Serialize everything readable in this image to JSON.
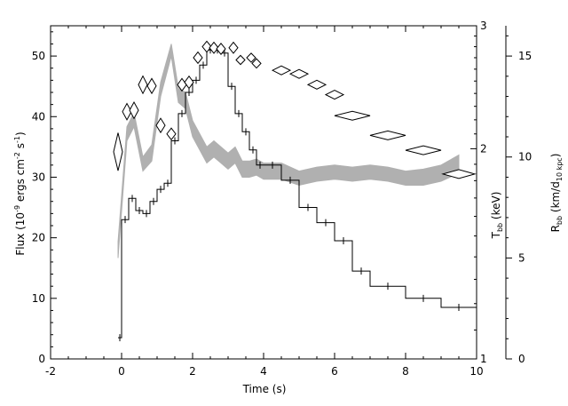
{
  "chart_data": {
    "type": "line",
    "title": "",
    "xlabel": "Time (s)",
    "xlim": [
      -2,
      10
    ],
    "x_ticks": [
      "-2",
      "0",
      "2",
      "4",
      "6",
      "8",
      "10"
    ],
    "axes": {
      "flux": {
        "label_parts": [
          "Flux (10",
          "-9",
          " ergs cm",
          "-2",
          " s",
          "-1",
          ")"
        ],
        "lim": [
          0,
          55
        ],
        "ticks": [
          "0",
          "10",
          "20",
          "30",
          "40",
          "50"
        ]
      },
      "tbb": {
        "label_parts": [
          "T",
          "bb",
          " (keV)"
        ],
        "lim": [
          1,
          3
        ],
        "scale": "log",
        "ticks": [
          "1",
          "2",
          "3"
        ]
      },
      "rbb": {
        "label_parts": [
          "R",
          "bb",
          " (km/d",
          "10 kpc",
          ")"
        ],
        "lim": [
          0,
          16.5
        ],
        "ticks": [
          "0",
          "5",
          "10",
          "15"
        ]
      }
    },
    "series": [
      {
        "kind": "flux-histogram",
        "axis": "flux",
        "color": "#000000",
        "bins": [
          {
            "x0": -0.1,
            "x1": 0.0,
            "y": 3.5
          },
          {
            "x0": 0.0,
            "x1": 0.2,
            "y": 23.0
          },
          {
            "x0": 0.2,
            "x1": 0.4,
            "y": 26.5
          },
          {
            "x0": 0.4,
            "x1": 0.6,
            "y": 24.5
          },
          {
            "x0": 0.6,
            "x1": 0.8,
            "y": 24.0
          },
          {
            "x0": 0.8,
            "x1": 1.0,
            "y": 26.0
          },
          {
            "x0": 1.0,
            "x1": 1.2,
            "y": 28.0
          },
          {
            "x0": 1.2,
            "x1": 1.4,
            "y": 29.0
          },
          {
            "x0": 1.4,
            "x1": 1.6,
            "y": 36.0
          },
          {
            "x0": 1.6,
            "x1": 1.8,
            "y": 40.5
          },
          {
            "x0": 1.8,
            "x1": 2.0,
            "y": 44.0
          },
          {
            "x0": 2.0,
            "x1": 2.2,
            "y": 46.0
          },
          {
            "x0": 2.2,
            "x1": 2.4,
            "y": 48.5
          },
          {
            "x0": 2.4,
            "x1": 2.6,
            "y": 51.0
          },
          {
            "x0": 2.6,
            "x1": 2.8,
            "y": 51.0
          },
          {
            "x0": 2.8,
            "x1": 3.0,
            "y": 50.5
          },
          {
            "x0": 3.0,
            "x1": 3.2,
            "y": 45.0
          },
          {
            "x0": 3.2,
            "x1": 3.4,
            "y": 40.5
          },
          {
            "x0": 3.4,
            "x1": 3.6,
            "y": 37.5
          },
          {
            "x0": 3.6,
            "x1": 3.8,
            "y": 34.5
          },
          {
            "x0": 3.8,
            "x1": 4.0,
            "y": 32.0
          },
          {
            "x0": 4.0,
            "x1": 4.5,
            "y": 32.0
          },
          {
            "x0": 4.5,
            "x1": 5.0,
            "y": 29.5
          },
          {
            "x0": 5.0,
            "x1": 5.5,
            "y": 25.0
          },
          {
            "x0": 5.5,
            "x1": 6.0,
            "y": 22.5
          },
          {
            "x0": 6.0,
            "x1": 6.5,
            "y": 19.5
          },
          {
            "x0": 6.5,
            "x1": 7.0,
            "y": 14.5
          },
          {
            "x0": 7.0,
            "x1": 8.0,
            "y": 12.0
          },
          {
            "x0": 8.0,
            "x1": 9.0,
            "y": 10.0
          },
          {
            "x0": 9.0,
            "x1": 10.0,
            "y": 8.5
          }
        ]
      },
      {
        "kind": "temperature-points",
        "axis": "tbb",
        "color": "#000000",
        "points": [
          {
            "x": -0.1,
            "y": 1.98,
            "dx": 0.1,
            "dy": 0.12
          },
          {
            "x": 0.15,
            "y": 2.26,
            "dx": 0.1,
            "dy": 0.06
          },
          {
            "x": 0.35,
            "y": 2.27,
            "dx": 0.1,
            "dy": 0.06
          },
          {
            "x": 0.6,
            "y": 2.47,
            "dx": 0.1,
            "dy": 0.07
          },
          {
            "x": 0.85,
            "y": 2.46,
            "dx": 0.1,
            "dy": 0.06
          },
          {
            "x": 1.1,
            "y": 2.16,
            "dx": 0.1,
            "dy": 0.05
          },
          {
            "x": 1.4,
            "y": 2.1,
            "dx": 0.1,
            "dy": 0.04
          },
          {
            "x": 1.7,
            "y": 2.47,
            "dx": 0.1,
            "dy": 0.05
          },
          {
            "x": 1.9,
            "y": 2.49,
            "dx": 0.1,
            "dy": 0.05
          },
          {
            "x": 2.15,
            "y": 2.7,
            "dx": 0.1,
            "dy": 0.05
          },
          {
            "x": 2.4,
            "y": 2.8,
            "dx": 0.1,
            "dy": 0.05
          },
          {
            "x": 2.6,
            "y": 2.79,
            "dx": 0.1,
            "dy": 0.05
          },
          {
            "x": 2.8,
            "y": 2.78,
            "dx": 0.1,
            "dy": 0.05
          },
          {
            "x": 3.15,
            "y": 2.79,
            "dx": 0.1,
            "dy": 0.05
          },
          {
            "x": 3.35,
            "y": 2.68,
            "dx": 0.1,
            "dy": 0.04
          },
          {
            "x": 3.65,
            "y": 2.7,
            "dx": 0.12,
            "dy": 0.04
          },
          {
            "x": 3.8,
            "y": 2.65,
            "dx": 0.12,
            "dy": 0.04
          },
          {
            "x": 4.5,
            "y": 2.59,
            "dx": 0.25,
            "dy": 0.02
          },
          {
            "x": 5.0,
            "y": 2.56,
            "dx": 0.25,
            "dy": 0.02
          },
          {
            "x": 5.5,
            "y": 2.47,
            "dx": 0.25,
            "dy": 0.02
          },
          {
            "x": 6.0,
            "y": 2.39,
            "dx": 0.25,
            "dy": 0.02
          },
          {
            "x": 6.5,
            "y": 2.23,
            "dx": 0.5,
            "dy": 0.02
          },
          {
            "x": 7.5,
            "y": 2.09,
            "dx": 0.5,
            "dy": 0.02
          },
          {
            "x": 8.5,
            "y": 1.99,
            "dx": 0.5,
            "dy": 0.02
          },
          {
            "x": 9.5,
            "y": 1.84,
            "dx": 0.45,
            "dy": 0.02
          }
        ]
      },
      {
        "kind": "radius-band",
        "axis": "rbb",
        "color": "#b0b0b0",
        "x": [
          -0.1,
          0.15,
          0.35,
          0.6,
          0.85,
          1.1,
          1.4,
          1.6,
          1.8,
          2.0,
          2.4,
          2.6,
          2.8,
          3.0,
          3.2,
          3.4,
          3.6,
          3.8,
          4.0,
          4.5,
          5.0,
          5.5,
          6.0,
          6.5,
          7.0,
          7.5,
          8.0,
          8.5,
          9.0,
          9.5
        ],
        "low": [
          5.0,
          10.8,
          11.5,
          9.3,
          9.8,
          13.0,
          15.0,
          12.7,
          12.4,
          11.0,
          9.7,
          10.0,
          9.7,
          9.4,
          9.7,
          9.0,
          9.0,
          9.1,
          8.9,
          8.9,
          8.6,
          8.8,
          8.9,
          8.8,
          8.9,
          8.8,
          8.6,
          8.6,
          8.8,
          9.2
        ],
        "high": [
          5.8,
          11.5,
          12.2,
          10.0,
          10.6,
          13.7,
          15.6,
          13.4,
          13.2,
          11.8,
          10.5,
          10.8,
          10.5,
          10.2,
          10.5,
          9.8,
          9.8,
          9.9,
          9.7,
          9.7,
          9.3,
          9.5,
          9.6,
          9.5,
          9.6,
          9.5,
          9.3,
          9.4,
          9.6,
          10.1
        ]
      }
    ]
  }
}
